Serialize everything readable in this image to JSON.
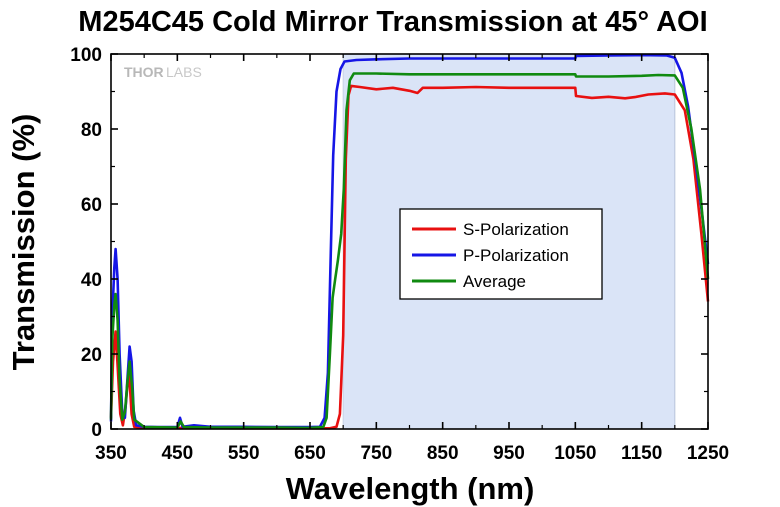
{
  "chart_data": {
    "type": "line",
    "title": "M254C45 Cold Mirror Transmission at 45° AOI",
    "xlabel": "Wavelength (nm)",
    "ylabel": "Transmission (%)",
    "xlim": [
      350,
      1250
    ],
    "ylim": [
      0,
      100
    ],
    "xticks": [
      350,
      450,
      550,
      650,
      750,
      850,
      950,
      1050,
      1150,
      1250
    ],
    "yticks": [
      0,
      20,
      40,
      60,
      80,
      100
    ],
    "grid": false,
    "legend_position": "center-right",
    "watermark": {
      "bold": "THOR",
      "light": "LABS"
    },
    "shaded_region": {
      "x": [
        700,
        1200
      ],
      "color": "#dae4f7"
    },
    "series": [
      {
        "name": "S-Polarization",
        "color": "#e81010",
        "points": [
          [
            350,
            3
          ],
          [
            353,
            18
          ],
          [
            357,
            26
          ],
          [
            360,
            17
          ],
          [
            364,
            4
          ],
          [
            368,
            1
          ],
          [
            372,
            6
          ],
          [
            377,
            16
          ],
          [
            381,
            4
          ],
          [
            385,
            0.6
          ],
          [
            400,
            0.3
          ],
          [
            450,
            0.3
          ],
          [
            550,
            0.2
          ],
          [
            650,
            0.2
          ],
          [
            680,
            0.2
          ],
          [
            690,
            0.6
          ],
          [
            695,
            4
          ],
          [
            700,
            25
          ],
          [
            704,
            72
          ],
          [
            708,
            89
          ],
          [
            712,
            91.5
          ],
          [
            725,
            91.2
          ],
          [
            750,
            90.6
          ],
          [
            775,
            91
          ],
          [
            800,
            90.2
          ],
          [
            812,
            89.6
          ],
          [
            820,
            91
          ],
          [
            850,
            91
          ],
          [
            900,
            91.2
          ],
          [
            950,
            91
          ],
          [
            1000,
            91
          ],
          [
            1050,
            91
          ],
          [
            1051,
            88.8
          ],
          [
            1075,
            88.3
          ],
          [
            1100,
            88.6
          ],
          [
            1125,
            88.2
          ],
          [
            1140,
            88.5
          ],
          [
            1160,
            89.2
          ],
          [
            1185,
            89.5
          ],
          [
            1200,
            89.2
          ],
          [
            1215,
            85
          ],
          [
            1228,
            72
          ],
          [
            1240,
            52
          ],
          [
            1250,
            34
          ]
        ]
      },
      {
        "name": "P-Polarization",
        "color": "#1616e6",
        "points": [
          [
            350,
            2
          ],
          [
            352,
            30
          ],
          [
            355,
            43
          ],
          [
            357,
            48
          ],
          [
            360,
            40
          ],
          [
            363,
            20
          ],
          [
            367,
            4
          ],
          [
            371,
            3
          ],
          [
            375,
            14
          ],
          [
            378,
            22
          ],
          [
            381,
            18
          ],
          [
            384,
            5
          ],
          [
            388,
            1
          ],
          [
            400,
            0.6
          ],
          [
            420,
            0.5
          ],
          [
            450,
            0.5
          ],
          [
            454,
            3
          ],
          [
            458,
            0.6
          ],
          [
            475,
            1
          ],
          [
            500,
            0.6
          ],
          [
            550,
            0.6
          ],
          [
            600,
            0.5
          ],
          [
            650,
            0.5
          ],
          [
            665,
            0.6
          ],
          [
            672,
            3
          ],
          [
            677,
            15
          ],
          [
            681,
            45
          ],
          [
            685,
            73
          ],
          [
            690,
            90
          ],
          [
            696,
            96
          ],
          [
            702,
            98
          ],
          [
            720,
            98.4
          ],
          [
            750,
            98.6
          ],
          [
            800,
            98.8
          ],
          [
            850,
            98.8
          ],
          [
            900,
            98.8
          ],
          [
            950,
            98.8
          ],
          [
            1000,
            98.8
          ],
          [
            1050,
            98.8
          ],
          [
            1051,
            99.5
          ],
          [
            1100,
            99.6
          ],
          [
            1150,
            99.7
          ],
          [
            1188,
            99.6
          ],
          [
            1200,
            99
          ],
          [
            1210,
            95
          ],
          [
            1220,
            86
          ],
          [
            1232,
            70
          ],
          [
            1242,
            56
          ],
          [
            1250,
            44
          ]
        ]
      },
      {
        "name": "Average",
        "color": "#108a10",
        "points": [
          [
            350,
            2.5
          ],
          [
            352,
            24
          ],
          [
            355,
            33
          ],
          [
            357,
            36
          ],
          [
            360,
            29
          ],
          [
            363,
            13
          ],
          [
            367,
            2.5
          ],
          [
            371,
            4.5
          ],
          [
            375,
            13
          ],
          [
            378,
            18
          ],
          [
            382,
            11
          ],
          [
            385,
            2.5
          ],
          [
            400,
            0.5
          ],
          [
            450,
            0.4
          ],
          [
            455,
            2
          ],
          [
            460,
            0.5
          ],
          [
            500,
            0.4
          ],
          [
            550,
            0.4
          ],
          [
            600,
            0.4
          ],
          [
            650,
            0.3
          ],
          [
            670,
            0.5
          ],
          [
            675,
            3
          ],
          [
            680,
            20
          ],
          [
            684,
            35
          ],
          [
            688,
            40
          ],
          [
            692,
            45
          ],
          [
            697,
            52
          ],
          [
            701,
            64
          ],
          [
            705,
            85
          ],
          [
            710,
            93
          ],
          [
            716,
            94.8
          ],
          [
            750,
            94.8
          ],
          [
            800,
            94.6
          ],
          [
            850,
            94.6
          ],
          [
            900,
            94.6
          ],
          [
            950,
            94.6
          ],
          [
            1000,
            94.6
          ],
          [
            1050,
            94.6
          ],
          [
            1051,
            94
          ],
          [
            1100,
            94
          ],
          [
            1150,
            94.2
          ],
          [
            1175,
            94.4
          ],
          [
            1200,
            94.3
          ],
          [
            1212,
            91
          ],
          [
            1225,
            80
          ],
          [
            1238,
            64
          ],
          [
            1250,
            40
          ]
        ]
      }
    ]
  }
}
